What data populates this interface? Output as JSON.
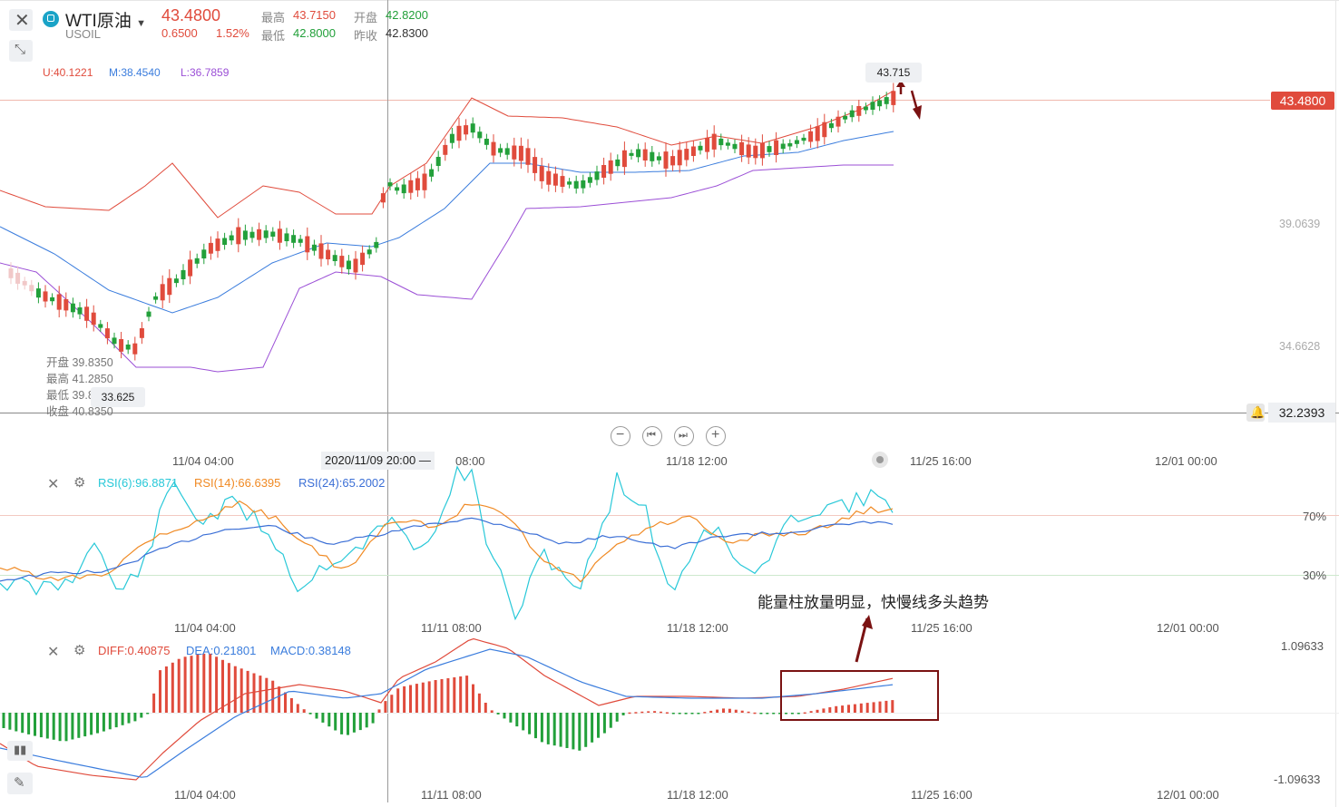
{
  "header": {
    "name": "WTI原油",
    "symbol": "USOIL",
    "price": "43.4800",
    "change": "0.6500",
    "change_pct": "1.52%",
    "high_label": "最高",
    "high": "43.7150",
    "open_label": "开盘",
    "open": "42.8200",
    "low_label": "最低",
    "low": "42.8000",
    "prev_label": "昨收",
    "prev": "42.8300"
  },
  "boll": {
    "u": "U:40.1221",
    "m": "M:38.4540",
    "l": "L:36.7859"
  },
  "ohlc_tip": {
    "open": "开盘 39.8350",
    "high": "最高 41.2850",
    "low": "最低 39.8150",
    "close": "收盘 40.8350",
    "min_marker": "33.625"
  },
  "price_axis": {
    "current": "43.4800",
    "t1": "39.0639",
    "t2": "34.6628",
    "bottom": "32.2393"
  },
  "max_marker": "43.715",
  "crosshair_time": "2020/11/09 20:00 —",
  "time_labels_main": [
    "11/04 04:00",
    "08:00",
    "11/18 12:00",
    "11/25 16:00",
    "12/01 00:00"
  ],
  "time_labels_sub": [
    "11/04 04:00",
    "11/11 08:00",
    "11/18 12:00",
    "11/25 16:00",
    "12/01 00:00"
  ],
  "rsi": {
    "r6": "RSI(6):96.8871",
    "r14": "RSI(14):66.6395",
    "r24": "RSI(24):65.2002",
    "level70": "70%",
    "level30": "30%"
  },
  "macd": {
    "diff": "DIFF:0.40875",
    "dea": "DEA:0.21801",
    "macd": "MACD:0.38148",
    "top": "1.09633",
    "bottom": "-1.09633"
  },
  "annotation": "能量柱放量明显，快慢线多头趋势",
  "colors": {
    "up": "#e04b3c",
    "down": "#22a03a",
    "boll_u": "#e04b3c",
    "boll_m": "#3b7ddd",
    "boll_l": "#9b4fd6",
    "rsi6": "#28c8d8",
    "rsi14": "#f08a24",
    "rsi24": "#3b6fd6",
    "annot": "#7a1212"
  },
  "icons": [
    "close-icon",
    "collapse-icon",
    "zoom-out-icon",
    "step-back-icon",
    "step-forward-icon",
    "zoom-in-icon",
    "bell-icon",
    "settings-icon",
    "pencil-icon"
  ]
}
